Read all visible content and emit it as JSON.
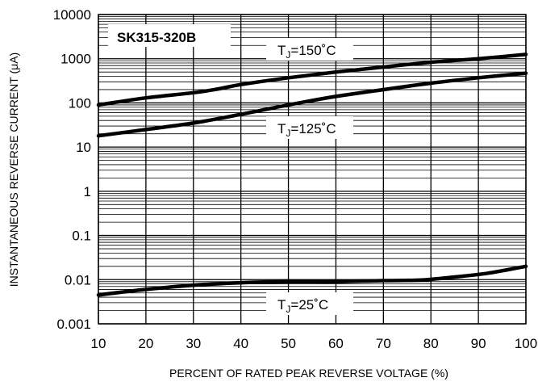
{
  "chart_data": {
    "type": "line",
    "title": "SK315-320B",
    "xlabel": "PERCENT OF RATED PEAK REVERSE VOLTAGE (%)",
    "ylabel": "INSTANTANEOUS REVERSE CURRENT (μA)",
    "xlim": [
      10,
      100
    ],
    "ylim": [
      0.001,
      10000
    ],
    "yscale": "log",
    "grid": true,
    "x_ticks": [
      10,
      20,
      30,
      40,
      50,
      60,
      70,
      80,
      90,
      100
    ],
    "x_tick_labels": [
      "10",
      "20",
      "30",
      "40",
      "50",
      "60",
      "70",
      "80",
      "90",
      "100"
    ],
    "y_ticks": [
      0.001,
      0.01,
      0.1,
      1,
      10,
      100,
      1000,
      10000
    ],
    "y_tick_labels": [
      "0.001",
      "0.01",
      "0.1",
      "1",
      "10",
      "100",
      "1000",
      "10000"
    ],
    "series": [
      {
        "label_prefix": "T",
        "label_sub": "J",
        "label_suffix": "=150˚C",
        "x": [
          10,
          20,
          30,
          35,
          40,
          50,
          60,
          70,
          80,
          90,
          100
        ],
        "values": [
          90,
          130,
          170,
          205,
          260,
          370,
          500,
          650,
          830,
          1000,
          1250
        ]
      },
      {
        "label_prefix": "T",
        "label_sub": "J",
        "label_suffix": "=125˚C",
        "x": [
          10,
          20,
          30,
          40,
          50,
          60,
          70,
          80,
          90,
          100
        ],
        "values": [
          18,
          25,
          35,
          55,
          90,
          140,
          200,
          280,
          370,
          470
        ]
      },
      {
        "label_prefix": "T",
        "label_sub": "J",
        "label_suffix": "=25˚C",
        "x": [
          10,
          20,
          30,
          40,
          50,
          60,
          70,
          78,
          85,
          92,
          100
        ],
        "values": [
          0.0045,
          0.006,
          0.0075,
          0.0085,
          0.009,
          0.009,
          0.0095,
          0.0098,
          0.0115,
          0.014,
          0.02
        ]
      }
    ],
    "colors": {
      "line": "#000000",
      "grid": "#000000",
      "background": "#ffffff"
    }
  }
}
